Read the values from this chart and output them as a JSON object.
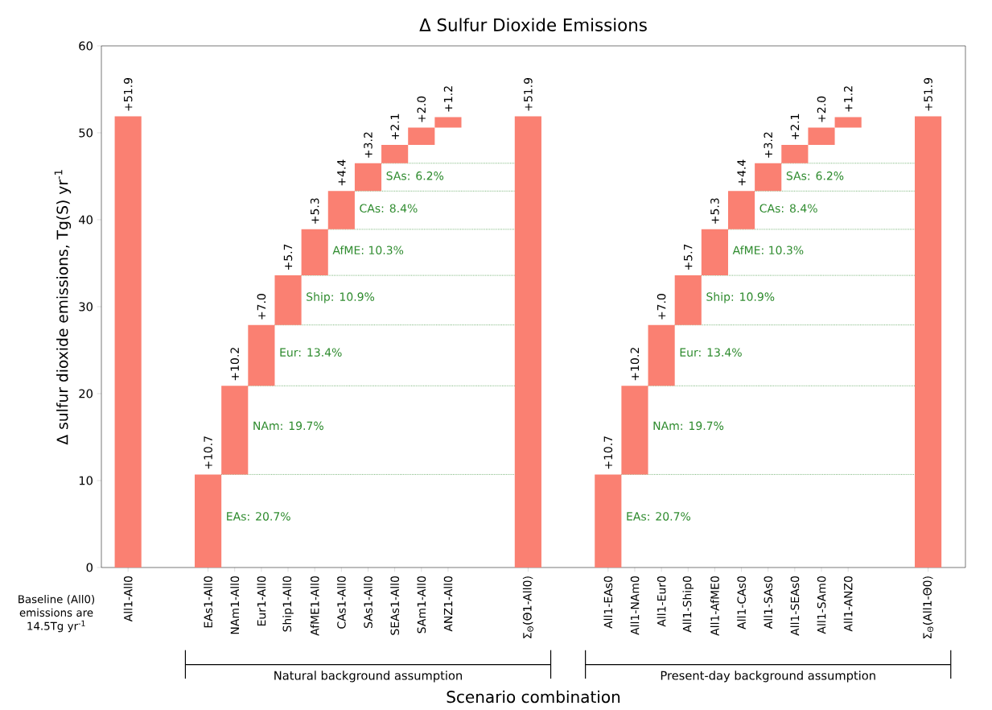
{
  "chart_data": {
    "type": "bar",
    "title": "Δ Sulfur Dioxide Emissions",
    "xlabel": "Scenario combination",
    "ylabel": "Δ sulfur dioxide emissions, Tg(S) yr$^{-1}$",
    "categories": [
      "All1-All0",
      null,
      null,
      "EAs1-All0",
      "NAm1-All0",
      "Eur1-All0",
      "Ship1-All0",
      "AfME1-All0",
      "CAs1-All0",
      "SAs1-All0",
      "SEAs1-All0",
      "SAm1-All0",
      "ANZ1-All0",
      null,
      null,
      "Σ$_{Θ}$(Θ1-All0)",
      null,
      null,
      "All1-EAs0",
      "All1-NAm0",
      "All1-Eur0",
      "All1-Ship0",
      "All1-AfME0",
      "All1-CAs0",
      "All1-SAs0",
      "All1-SEAs0",
      "All1-SAm0",
      "All1-ANZ0",
      null,
      null,
      "Σ$_{Θ}$(All1-Θ0)"
    ],
    "values": [
      51.9,
      null,
      null,
      10.7,
      10.2,
      7.0,
      5.7,
      5.3,
      4.4,
      3.2,
      2.1,
      2.0,
      1.2,
      null,
      null,
      51.9,
      null,
      null,
      10.7,
      10.2,
      7.0,
      5.7,
      5.3,
      4.4,
      3.2,
      2.1,
      2.0,
      1.2,
      null,
      null,
      51.9
    ],
    "base": [
      0,
      null,
      null,
      0,
      10.7,
      20.9,
      27.9,
      33.6,
      38.9,
      43.3,
      46.5,
      48.6,
      50.6,
      null,
      null,
      0,
      null,
      null,
      0,
      10.7,
      20.9,
      27.9,
      33.6,
      38.9,
      43.3,
      46.5,
      48.6,
      50.6,
      null,
      null,
      0
    ],
    "value_labels": [
      "+51.9",
      null,
      null,
      "+10.7",
      "+10.2",
      "+7.0",
      "+5.7",
      "+5.3",
      "+4.4",
      "+3.2",
      "+2.1",
      "+2.0",
      "+1.2",
      null,
      null,
      "+51.9",
      null,
      null,
      "+10.7",
      "+10.2",
      "+7.0",
      "+5.7",
      "+5.3",
      "+4.4",
      "+3.2",
      "+2.1",
      "+2.0",
      "+1.2",
      null,
      null,
      "+51.9"
    ],
    "color": "#fa8072",
    "ylim": [
      0,
      60
    ],
    "yticks": [
      0,
      10,
      20,
      30,
      40,
      50,
      60
    ],
    "grid": false,
    "ref_lines": [
      {
        "axis": "y",
        "value": 10.7,
        "color": "#2e8b2e",
        "line_style": "dotted"
      },
      {
        "axis": "y",
        "value": 20.9,
        "color": "#2e8b2e",
        "line_style": "dotted"
      },
      {
        "axis": "y",
        "value": 27.9,
        "color": "#2e8b2e",
        "line_style": "dotted"
      },
      {
        "axis": "y",
        "value": 33.6,
        "color": "#2e8b2e",
        "line_style": "dotted"
      },
      {
        "axis": "y",
        "value": 38.9,
        "color": "#2e8b2e",
        "line_style": "dotted"
      },
      {
        "axis": "y",
        "value": 43.3,
        "color": "#2e8b2e",
        "line_style": "dotted"
      },
      {
        "axis": "y",
        "value": 46.5,
        "color": "#2e8b2e",
        "line_style": "dotted"
      }
    ],
    "annotations": [
      "Baseline (All0) emissions are 14.5Tg yr$^{-1}$",
      "Natural background assumption",
      "Present-day background assumption",
      "EAs: 20.7%",
      "NAm: 19.7%",
      "Eur: 13.4%",
      "Ship: 10.9%",
      "AfME: 10.3%",
      "CAs: 8.4%",
      "SAs: 6.2%",
      "EAs: 20.7%",
      "NAm: 19.7%",
      "Eur: 13.4%",
      "Ship: 10.9%",
      "AfME: 10.3%",
      "CAs: 8.4%",
      "SAs: 6.2%"
    ]
  }
}
